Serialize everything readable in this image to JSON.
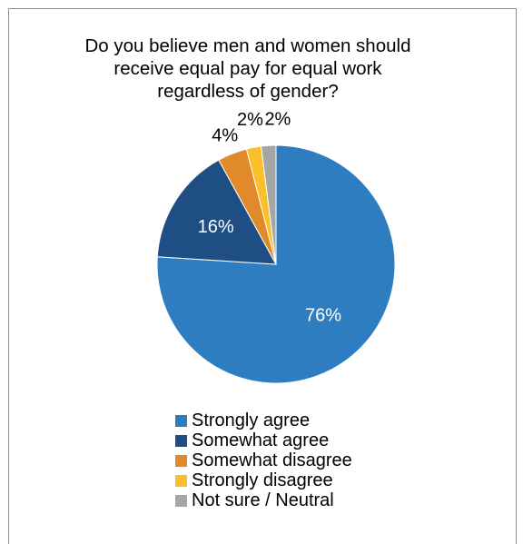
{
  "chart_data": {
    "type": "pie",
    "title_lines": [
      "Do you believe men and women should",
      "receive equal pay for equal work",
      "regardless of gender?"
    ],
    "categories": [
      "Strongly agree",
      "Somewhat agree",
      "Somewhat disagree",
      "Strongly disagree",
      "Not sure / Neutral"
    ],
    "values": [
      76,
      16,
      4,
      2,
      2
    ],
    "data_labels": [
      "76%",
      "16%",
      "4%",
      "2%",
      "2%"
    ],
    "colors": [
      "#2e7dc0",
      "#1f4e84",
      "#e08a2a",
      "#fbbf2b",
      "#a5a5a5"
    ],
    "label_colors": [
      "#ffffff",
      "#ffffff",
      "#000000",
      "#000000",
      "#000000"
    ],
    "legend_position": "bottom"
  }
}
